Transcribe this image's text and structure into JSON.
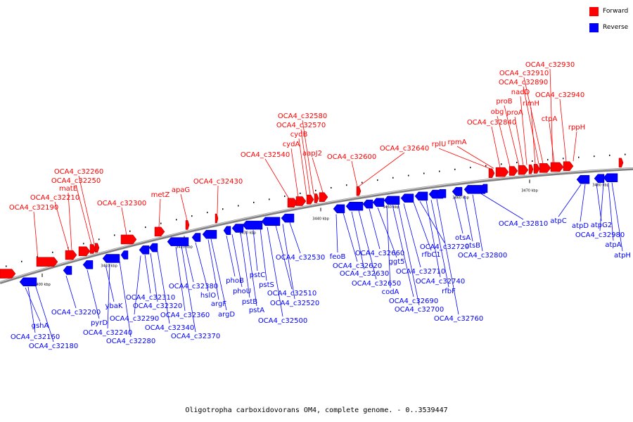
{
  "caption": "Oligotropha carboxidovorans OM4, complete genome. - 0..3539447",
  "legend": [
    {
      "label": "Forward",
      "color": "#ff0000"
    },
    {
      "label": "Reverse",
      "color": "#0000ff"
    }
  ],
  "colors": {
    "forward": "#ff0000",
    "reverse": "#0000ff",
    "backbone": "#808080"
  },
  "ticks": [
    "3400 kbp",
    "3410 kbp",
    "3420 kbp",
    "3430 kbp",
    "3440 kbp",
    "3450 kbp",
    "3460 kbp",
    "3470 kbp",
    "3480 kbp"
  ],
  "forward_labels": [
    "OCA4_c32190",
    "OCA4_c32210",
    "matE",
    "OCA4_c32250",
    "OCA4_c32260",
    "OCA4_c32300",
    "metZ",
    "apaG",
    "OCA4_c32430",
    "OCA4_c32540",
    "cydA",
    "cydB",
    "OCA4_c32570",
    "OCA4_c32580",
    "aapJ2",
    "OCA4_c32600",
    "OCA4_c32640",
    "rplU",
    "rpmA",
    "OCA4_c32840",
    "obg",
    "proB",
    "proA",
    "nadD",
    "rlmH",
    "OCA4_c32890",
    "OCA4_c32910",
    "OCA4_c32930",
    "ctpA",
    "OCA4_c32940",
    "rppH"
  ],
  "reverse_labels": [
    "gshA",
    "OCA4_c32160",
    "OCA4_c32180",
    "OCA4_c32200",
    "pyrD",
    "ybaK",
    "OCA4_c32240",
    "OCA4_c32280",
    "OCA4_c32290",
    "OCA4_c32310",
    "OCA4_c32320",
    "OCA4_c32340",
    "OCA4_c32360",
    "OCA4_c32370",
    "OCA4_c32380",
    "hslO",
    "argF",
    "argD",
    "phoB",
    "phoU",
    "pstB",
    "pstA",
    "pstC",
    "pstS",
    "OCA4_c32500",
    "OCA4_c32510",
    "OCA4_c32520",
    "OCA4_c32530",
    "feoB",
    "OCA4_c32620",
    "OCA4_c32630",
    "OCA4_c32650",
    "OCA4_c32660",
    "ggt5",
    "codA",
    "OCA4_c32690",
    "OCA4_c32700",
    "OCA4_c32710",
    "rfbC1",
    "OCA4_c32720",
    "OCA4_c32740",
    "rfbF",
    "OCA4_c32760",
    "otsA",
    "otsB",
    "OCA4_c32800",
    "OCA4_c32810",
    "atpC",
    "atpD",
    "atpG2",
    "OCA4_c32980",
    "atpA",
    "atpH"
  ]
}
